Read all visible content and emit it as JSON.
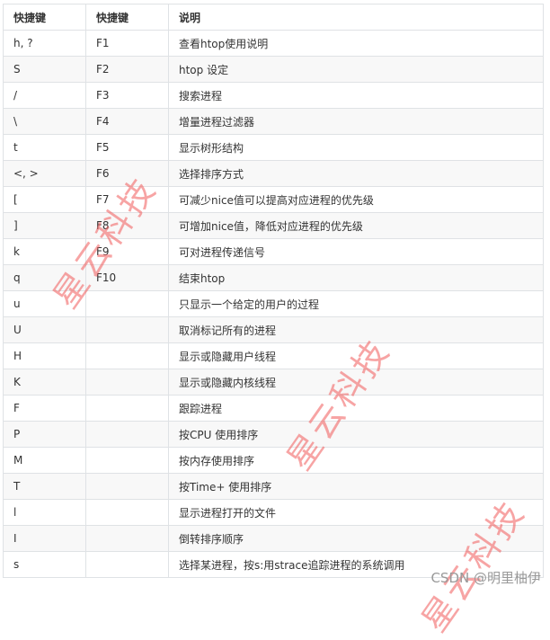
{
  "table": {
    "headers": [
      "快捷键",
      "快捷键",
      "说明"
    ],
    "rows": [
      [
        "h, ?",
        "F1",
        "查看htop使用说明"
      ],
      [
        "S",
        "F2",
        "htop 设定"
      ],
      [
        "/",
        "F3",
        "搜索进程"
      ],
      [
        "\\",
        "F4",
        "增量进程过滤器"
      ],
      [
        "t",
        "F5",
        "显示树形结构"
      ],
      [
        "<, >",
        "F6",
        "选择排序方式"
      ],
      [
        "[",
        "F7",
        "可减少nice值可以提高对应进程的优先级"
      ],
      [
        "]",
        "F8",
        "可增加nice值，降低对应进程的优先级"
      ],
      [
        "k",
        "F9",
        "可对进程传递信号"
      ],
      [
        "q",
        "F10",
        "结束htop"
      ],
      [
        "u",
        "",
        "只显示一个给定的用户的过程"
      ],
      [
        "U",
        "",
        "取消标记所有的进程"
      ],
      [
        "H",
        "",
        "显示或隐藏用户线程"
      ],
      [
        "K",
        "",
        "显示或隐藏内核线程"
      ],
      [
        "F",
        "",
        "跟踪进程"
      ],
      [
        "P",
        "",
        "按CPU 使用排序"
      ],
      [
        "M",
        "",
        "按内存使用排序"
      ],
      [
        "T",
        "",
        "按Time+ 使用排序"
      ],
      [
        "l",
        "",
        "显示进程打开的文件"
      ],
      [
        "I",
        "",
        "倒转排序顺序"
      ],
      [
        "s",
        "",
        "选择某进程，按s:用strace追踪进程的系统调用"
      ]
    ]
  },
  "watermark": "星云科技",
  "credit": "CSDN @明里柚伊"
}
